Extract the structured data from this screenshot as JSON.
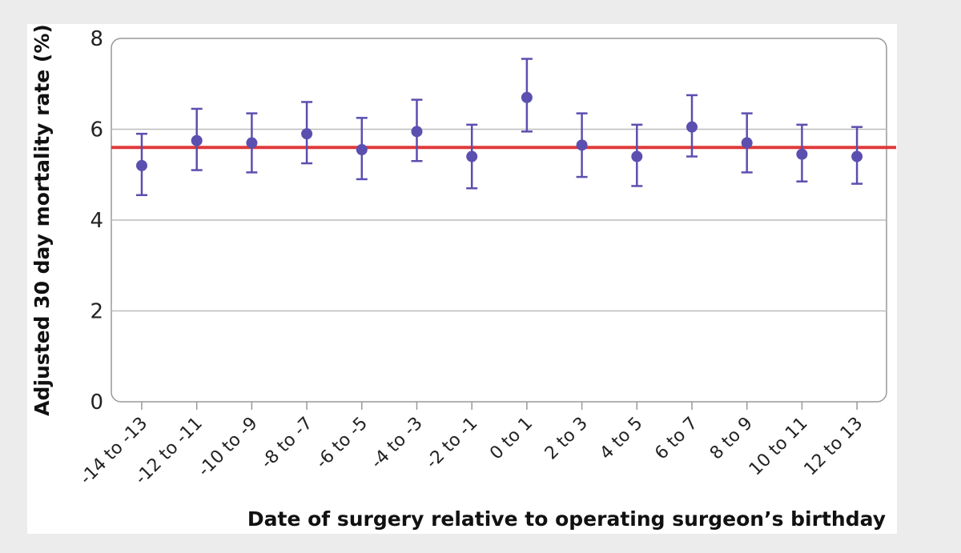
{
  "chart_data": {
    "type": "scatter",
    "subtype": "point-with-error-bars",
    "xlabel": "Date of surgery relative to operating surgeon’s birthday",
    "ylabel": "Adjusted 30 day mortality rate (%)",
    "categories": [
      "-14 to -13",
      "-12 to -11",
      "-10 to -9",
      "-8 to -7",
      "-6 to -5",
      "-4 to -3",
      "-2 to -1",
      "0 to 1",
      "2 to 3",
      "4 to 5",
      "6 to 7",
      "8 to 9",
      "10 to 11",
      "12 to 13"
    ],
    "series": [
      {
        "values": [
          5.2,
          5.75,
          5.7,
          5.9,
          5.55,
          5.95,
          5.4,
          6.7,
          5.65,
          5.4,
          6.05,
          5.7,
          5.45,
          5.4
        ],
        "lower": [
          4.55,
          5.1,
          5.05,
          5.25,
          4.9,
          5.3,
          4.7,
          5.95,
          4.95,
          4.75,
          5.4,
          5.05,
          4.85,
          4.8
        ],
        "upper": [
          5.9,
          6.45,
          6.35,
          6.6,
          6.25,
          6.65,
          6.1,
          7.55,
          6.35,
          6.1,
          6.75,
          6.35,
          6.1,
          6.05
        ],
        "color": "#5b4fb0"
      }
    ],
    "reference_line": {
      "value": 5.6,
      "color": "#e03a3a"
    },
    "ylim": [
      0,
      8
    ],
    "yticks": [
      0,
      2,
      4,
      6,
      8
    ],
    "grid": true,
    "legend": "none"
  }
}
